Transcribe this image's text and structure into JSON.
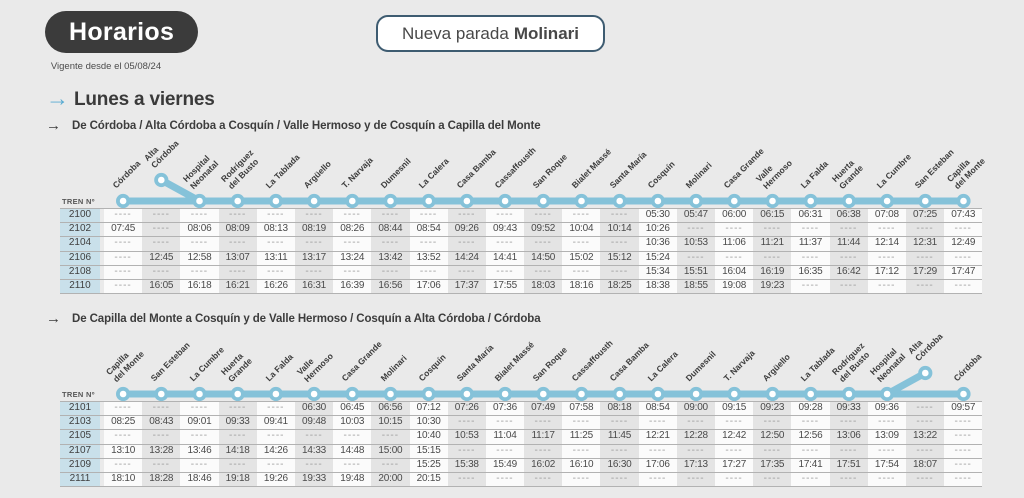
{
  "header": {
    "badge": "Horarios",
    "valid_from": "Vigente desde el 05/08/24",
    "banner_prefix": "Nueva parada",
    "banner_bold": "Molinari"
  },
  "icons": {
    "arrow_right": "→"
  },
  "colors": {
    "accent_blue": "#85c2d9",
    "arrow_blue": "#58abd2",
    "dark": "#3b3b3b",
    "banner_border": "#3e5c71",
    "train_cell_bg": "#c9e0ea"
  },
  "schedule": {
    "day_heading": "Lunes a viernes",
    "train_label": "TREN Nº",
    "sections": [
      {
        "title": "De Córdoba / Alta Córdoba a Cosquín / Valle Hermoso y de Cosquín a Capilla del Monte",
        "branch_index": 1,
        "branch_connect_index": 2,
        "stations": [
          "Córdoba",
          "Alta\nCórdoba",
          "Hospital\nNeonatal",
          "Rodríguez\ndel Busto",
          "La Tablada",
          "Argüello",
          "T. Narvaja",
          "Dumesnil",
          "La Calera",
          "Casa Bamba",
          "Cassaffousth",
          "San Roque",
          "Bialet Massé",
          "Santa María",
          "Cosquín",
          "Molinari",
          "Casa Grande",
          "Valle\nHermoso",
          "La Falda",
          "Huerta\nGrande",
          "La Cumbre",
          "San Esteban",
          "Capilla\ndel Monte"
        ],
        "rows": [
          {
            "train": "2100",
            "times": [
              "----",
              "----",
              "----",
              "----",
              "----",
              "----",
              "----",
              "----",
              "----",
              "----",
              "----",
              "----",
              "----",
              "----",
              "05:30",
              "05:47",
              "06:00",
              "06:15",
              "06:31",
              "06:38",
              "07:08",
              "07:25",
              "07:43"
            ]
          },
          {
            "train": "2102",
            "times": [
              "07:45",
              "----",
              "08:06",
              "08:09",
              "08:13",
              "08:19",
              "08:26",
              "08:44",
              "08:54",
              "09:26",
              "09:43",
              "09:52",
              "10:04",
              "10:14",
              "10:26",
              "----",
              "----",
              "----",
              "----",
              "----",
              "----",
              "----",
              "----"
            ]
          },
          {
            "train": "2104",
            "times": [
              "----",
              "----",
              "----",
              "----",
              "----",
              "----",
              "----",
              "----",
              "----",
              "----",
              "----",
              "----",
              "----",
              "----",
              "10:36",
              "10:53",
              "11:06",
              "11:21",
              "11:37",
              "11:44",
              "12:14",
              "12:31",
              "12:49"
            ]
          },
          {
            "train": "2106",
            "times": [
              "----",
              "12:45",
              "12:58",
              "13:07",
              "13:11",
              "13:17",
              "13:24",
              "13:42",
              "13:52",
              "14:24",
              "14:41",
              "14:50",
              "15:02",
              "15:12",
              "15:24",
              "----",
              "----",
              "----",
              "----",
              "----",
              "----",
              "----",
              "----"
            ]
          },
          {
            "train": "2108",
            "times": [
              "----",
              "----",
              "----",
              "----",
              "----",
              "----",
              "----",
              "----",
              "----",
              "----",
              "----",
              "----",
              "----",
              "----",
              "15:34",
              "15:51",
              "16:04",
              "16:19",
              "16:35",
              "16:42",
              "17:12",
              "17:29",
              "17:47"
            ]
          },
          {
            "train": "2110",
            "times": [
              "----",
              "16:05",
              "16:18",
              "16:21",
              "16:26",
              "16:31",
              "16:39",
              "16:56",
              "17:06",
              "17:37",
              "17:55",
              "18:03",
              "18:16",
              "18:25",
              "18:38",
              "18:55",
              "19:08",
              "19:23",
              "----",
              "----",
              "----",
              "----",
              "----"
            ]
          }
        ]
      },
      {
        "title": "De Capilla del Monte a Cosquín y de Valle Hermoso / Cosquín a Alta Córdoba / Córdoba",
        "branch_index": 21,
        "branch_connect_index": 20,
        "stations": [
          "Capilla\ndel Monte",
          "San Esteban",
          "La Cumbre",
          "Huerta\nGrande",
          "La Falda",
          "Valle\nHermoso",
          "Casa Grande",
          "Molinari",
          "Cosquín",
          "Santa María",
          "Bialet Massé",
          "San Roque",
          "Cassaffousth",
          "Casa Bamba",
          "La Calera",
          "Dumesnil",
          "T. Narvaja",
          "Argüello",
          "La Tablada",
          "Rodríguez\ndel Busto",
          "Hospital\nNeonatal",
          "Alta\nCórdoba",
          "Córdoba"
        ],
        "rows": [
          {
            "train": "2101",
            "times": [
              "----",
              "----",
              "----",
              "----",
              "----",
              "06:30",
              "06:45",
              "06:56",
              "07:12",
              "07:26",
              "07:36",
              "07:49",
              "07:58",
              "08:18",
              "08:54",
              "09:00",
              "09:15",
              "09:23",
              "09:28",
              "09:33",
              "09:36",
              "----",
              "09:57"
            ]
          },
          {
            "train": "2103",
            "times": [
              "08:25",
              "08:43",
              "09:01",
              "09:33",
              "09:41",
              "09:48",
              "10:03",
              "10:15",
              "10:30",
              "----",
              "----",
              "----",
              "----",
              "----",
              "----",
              "----",
              "----",
              "----",
              "----",
              "----",
              "----",
              "----",
              "----"
            ]
          },
          {
            "train": "2105",
            "times": [
              "----",
              "----",
              "----",
              "----",
              "----",
              "----",
              "----",
              "----",
              "10:40",
              "10:53",
              "11:04",
              "11:17",
              "11:25",
              "11:45",
              "12:21",
              "12:28",
              "12:42",
              "12:50",
              "12:56",
              "13:06",
              "13:09",
              "13:22",
              "----"
            ]
          },
          {
            "train": "2107",
            "times": [
              "13:10",
              "13:28",
              "13:46",
              "14:18",
              "14:26",
              "14:33",
              "14:48",
              "15:00",
              "15:15",
              "----",
              "----",
              "----",
              "----",
              "----",
              "----",
              "----",
              "----",
              "----",
              "----",
              "----",
              "----",
              "----",
              "----"
            ]
          },
          {
            "train": "2109",
            "times": [
              "----",
              "----",
              "----",
              "----",
              "----",
              "----",
              "----",
              "----",
              "15:25",
              "15:38",
              "15:49",
              "16:02",
              "16:10",
              "16:30",
              "17:06",
              "17:13",
              "17:27",
              "17:35",
              "17:41",
              "17:51",
              "17:54",
              "18:07",
              "----"
            ]
          },
          {
            "train": "2111",
            "times": [
              "18:10",
              "18:28",
              "18:46",
              "19:18",
              "19:26",
              "19:33",
              "19:48",
              "20:00",
              "20:15",
              "----",
              "----",
              "----",
              "----",
              "----",
              "----",
              "----",
              "----",
              "----",
              "----",
              "----",
              "----",
              "----",
              "----"
            ]
          }
        ]
      }
    ]
  }
}
